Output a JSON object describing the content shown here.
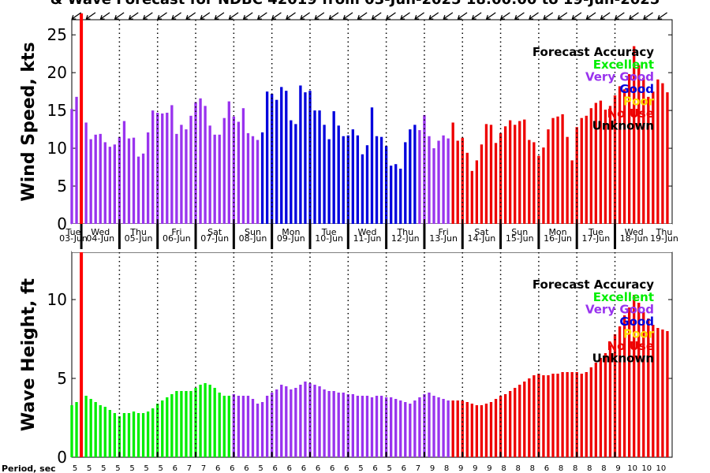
{
  "title": "& Wave Forecast for NDBC 42019 from 03-Jun-2025 18:00:00 to 19-Jun-2025",
  "period_label": "Period, sec",
  "colors": {
    "excellent": "#00ee00",
    "very_good": "#9933ee",
    "good": "#0000dd",
    "poor": "#ffdd00",
    "no_use": "#ee0000",
    "unknown": "#000000",
    "now_line": "#ff0000"
  },
  "legend": {
    "title": "Forecast Accuracy",
    "items": [
      "Excellent",
      "Very Good",
      "Good",
      "Poor",
      "No Use",
      "Unknown"
    ]
  },
  "day_labels": [
    {
      "dow": "Tue",
      "date": "03-Jun"
    },
    {
      "dow": "Wed",
      "date": "04-Jun"
    },
    {
      "dow": "Thu",
      "date": "05-Jun"
    },
    {
      "dow": "Fri",
      "date": "06-Jun"
    },
    {
      "dow": "Sat",
      "date": "07-Jun"
    },
    {
      "dow": "Sun",
      "date": "08-Jun"
    },
    {
      "dow": "Mon",
      "date": "09-Jun"
    },
    {
      "dow": "Tue",
      "date": "10-Jun"
    },
    {
      "dow": "Wed",
      "date": "11-Jun"
    },
    {
      "dow": "Thu",
      "date": "12-Jun"
    },
    {
      "dow": "Fri",
      "date": "13-Jun"
    },
    {
      "dow": "Sat",
      "date": "14-Jun"
    },
    {
      "dow": "Sun",
      "date": "15-Jun"
    },
    {
      "dow": "Mon",
      "date": "16-Jun"
    },
    {
      "dow": "Tue",
      "date": "17-Jun"
    },
    {
      "dow": "Wed",
      "date": "18-Jun"
    },
    {
      "dow": "Thu",
      "date": "19-Jun"
    }
  ],
  "chart_data": [
    {
      "type": "bar",
      "ylabel": "Wind Speed, kts",
      "ylim": [
        0,
        27
      ],
      "yticks": [
        0,
        5,
        10,
        15,
        20,
        25
      ],
      "grid": "vertical dotted lines at midnight",
      "legend_placement": "top-right",
      "x_start": "03-Jun-2025 18:00",
      "x_step_hours": 3,
      "values": [
        15.2,
        16.8,
        0,
        13.4,
        11.2,
        11.8,
        11.9,
        10.8,
        10.2,
        10.5,
        11.5,
        13.6,
        11.3,
        11.4,
        8.9,
        9.3,
        12.1,
        15.0,
        14.7,
        14.6,
        14.7,
        15.7,
        11.9,
        13.1,
        12.5,
        14.3,
        16.1,
        16.6,
        15.6,
        13.0,
        11.8,
        11.8,
        14.0,
        16.2,
        14.2,
        13.5,
        15.3,
        12.0,
        11.6,
        11.1,
        12.1,
        17.5,
        17.2,
        16.4,
        18.1,
        17.6,
        13.7,
        13.2,
        18.3,
        17.4,
        17.6,
        15.0,
        15.0,
        13.1,
        11.2,
        14.9,
        13.0,
        11.6,
        11.7,
        12.5,
        11.7,
        9.2,
        10.4,
        15.4,
        11.6,
        11.5,
        10.3,
        7.7,
        7.9,
        7.3,
        10.8,
        12.5,
        13.1,
        12.4,
        14.4,
        11.6,
        10.0,
        11.0,
        11.7,
        11.3,
        13.4,
        11.0,
        11.4,
        9.4,
        7.0,
        8.4,
        10.5,
        13.2,
        13.1,
        10.7,
        12.0,
        12.9,
        13.7,
        13.1,
        13.6,
        13.8,
        11.1,
        10.8,
        9.0,
        10.1,
        12.5,
        14.0,
        14.2,
        14.5,
        11.5,
        8.4,
        12.8,
        14.0,
        14.3,
        15.3,
        16.0,
        16.3,
        15.1,
        15.6,
        17.0,
        18.2,
        17.8,
        19.8,
        23.5,
        21.0,
        19.3,
        16.8,
        17.5,
        19.1,
        18.6,
        17.4
      ],
      "accuracy_runs": [
        {
          "category": "very_good",
          "count": 40
        },
        {
          "category": "good",
          "count": 33
        },
        {
          "category": "very_good",
          "count": 7
        },
        {
          "category": "no_use",
          "count": 46
        }
      ],
      "direction_arrows": "from northwest, across top axis"
    },
    {
      "type": "bar",
      "ylabel": "Wave Height, ft",
      "ylim": [
        0,
        13
      ],
      "yticks": [
        0,
        5,
        10
      ],
      "grid": "vertical dotted lines at midnight",
      "legend_placement": "top-right",
      "x_start": "03-Jun-2025 18:00",
      "x_step_hours": 3,
      "values": [
        3.3,
        3.5,
        0,
        3.9,
        3.7,
        3.5,
        3.3,
        3.2,
        3.0,
        2.8,
        2.6,
        2.8,
        2.8,
        2.9,
        2.8,
        2.8,
        2.9,
        3.1,
        3.4,
        3.6,
        3.8,
        4.0,
        4.2,
        4.2,
        4.2,
        4.2,
        4.4,
        4.6,
        4.7,
        4.6,
        4.4,
        4.1,
        3.9,
        3.9,
        4.0,
        3.9,
        3.9,
        3.9,
        3.7,
        3.4,
        3.5,
        3.9,
        4.1,
        4.3,
        4.6,
        4.5,
        4.3,
        4.4,
        4.6,
        4.8,
        4.7,
        4.6,
        4.5,
        4.3,
        4.2,
        4.2,
        4.1,
        4.1,
        4.0,
        4.0,
        3.9,
        3.9,
        3.9,
        3.8,
        3.9,
        3.9,
        3.8,
        3.8,
        3.7,
        3.6,
        3.5,
        3.4,
        3.6,
        3.8,
        4.0,
        4.1,
        3.9,
        3.8,
        3.7,
        3.6,
        3.6,
        3.6,
        3.6,
        3.5,
        3.4,
        3.3,
        3.3,
        3.4,
        3.5,
        3.7,
        3.9,
        4.0,
        4.2,
        4.4,
        4.6,
        4.8,
        5.0,
        5.2,
        5.3,
        5.2,
        5.2,
        5.3,
        5.3,
        5.4,
        5.4,
        5.4,
        5.4,
        5.3,
        5.4,
        5.7,
        6.0,
        6.3,
        6.6,
        7.1,
        7.8,
        8.3,
        9.0,
        9.5,
        10.3,
        9.8,
        9.2,
        8.8,
        8.4,
        8.2,
        8.1,
        8.0
      ],
      "accuracy_runs": [
        {
          "category": "excellent",
          "count": 34
        },
        {
          "category": "very_good",
          "count": 46
        },
        {
          "category": "no_use",
          "count": 46
        }
      ],
      "direction_arrows": "from northwest, across top axis"
    }
  ],
  "periods": [
    5,
    5,
    5,
    5,
    5,
    5,
    5,
    6,
    7,
    7,
    6,
    6,
    6,
    5,
    6,
    6,
    6,
    6,
    6,
    6,
    5,
    6,
    5,
    6,
    7,
    9,
    8,
    9,
    9,
    9,
    8,
    8,
    8,
    6,
    8,
    8,
    8,
    8,
    9,
    10,
    10,
    10
  ]
}
